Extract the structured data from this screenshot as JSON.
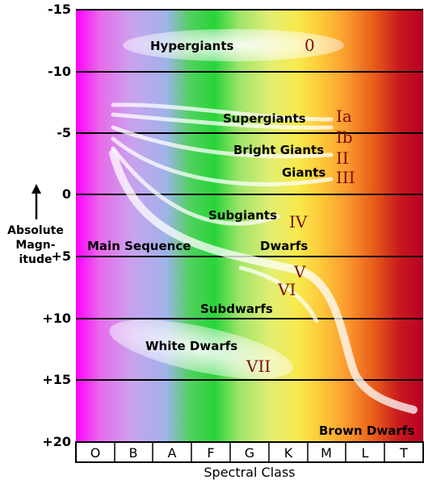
{
  "y_axis": {
    "label_lines": [
      "Absolute",
      "Magn-",
      "itude"
    ],
    "ticks": [
      "-15",
      "-10",
      "-5",
      "0",
      "+5",
      "+10",
      "+15",
      "+20"
    ]
  },
  "x_axis": {
    "label": "Spectral Class",
    "ticks": [
      "O",
      "B",
      "A",
      "F",
      "G",
      "K",
      "M",
      "L",
      "T"
    ]
  },
  "groups": {
    "hypergiants": "Hypergiants",
    "supergiants": "Supergiants",
    "bright_giants": "Bright Giants",
    "giants": "Giants",
    "subgiants": "Subgiants",
    "main_sequence": "Main Sequence",
    "dwarfs": "Dwarfs",
    "subdwarfs": "Subdwarfs",
    "white_dwarfs": "White Dwarfs",
    "brown_dwarfs": "Brown Dwarfs"
  },
  "classes": {
    "c0": "0",
    "ia": "Ia",
    "ib": "Ib",
    "ii": "II",
    "iii": "III",
    "iv": "IV",
    "v": "V",
    "vi": "VI",
    "vii": "VII"
  },
  "colors": {
    "O": "#ff00ff",
    "B": "#b9a6f2",
    "A": "#2fd63a",
    "F": "#c6ea5a",
    "G": "#f5e94b",
    "K": "#fdb530",
    "M": "#e85a1a",
    "T": "#bf0024",
    "class_label": "#7a0f0f"
  }
}
